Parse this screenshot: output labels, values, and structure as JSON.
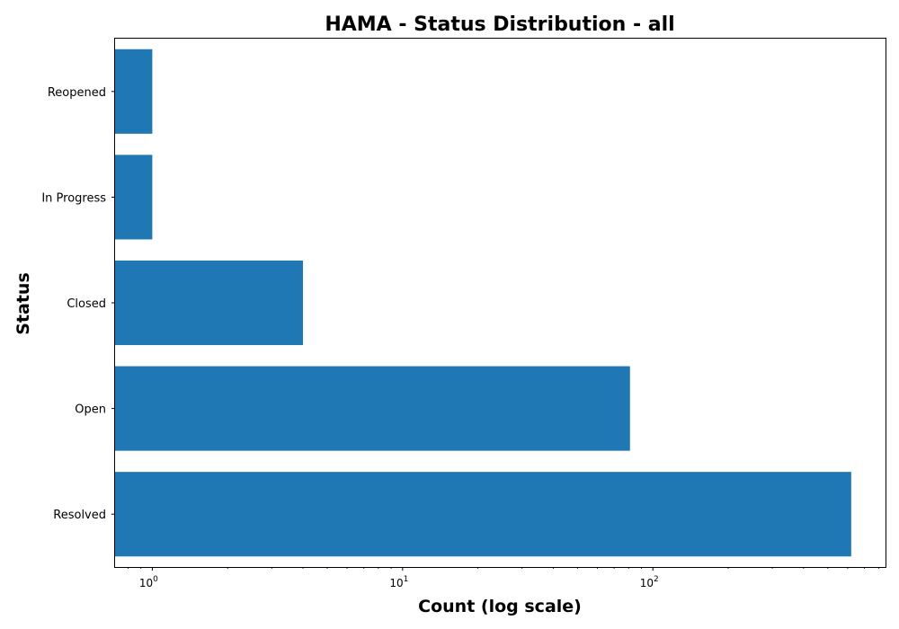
{
  "chart_data": {
    "type": "bar",
    "orientation": "horizontal",
    "title": "HAMA - Status Distribution - all",
    "xlabel": "Count (log scale)",
    "ylabel": "Status",
    "x_scale": "log",
    "xlim": [
      0.71,
      850
    ],
    "categories": [
      "Resolved",
      "Open",
      "Closed",
      "In Progress",
      "Reopened"
    ],
    "values": [
      620,
      81,
      4,
      1,
      1
    ],
    "x_ticks": [
      {
        "base": "10",
        "exp": "0",
        "value": 1
      },
      {
        "base": "10",
        "exp": "1",
        "value": 10
      },
      {
        "base": "10",
        "exp": "2",
        "value": 100
      }
    ],
    "bar_color": "#1f77b4",
    "grid": false,
    "legend": "none"
  }
}
